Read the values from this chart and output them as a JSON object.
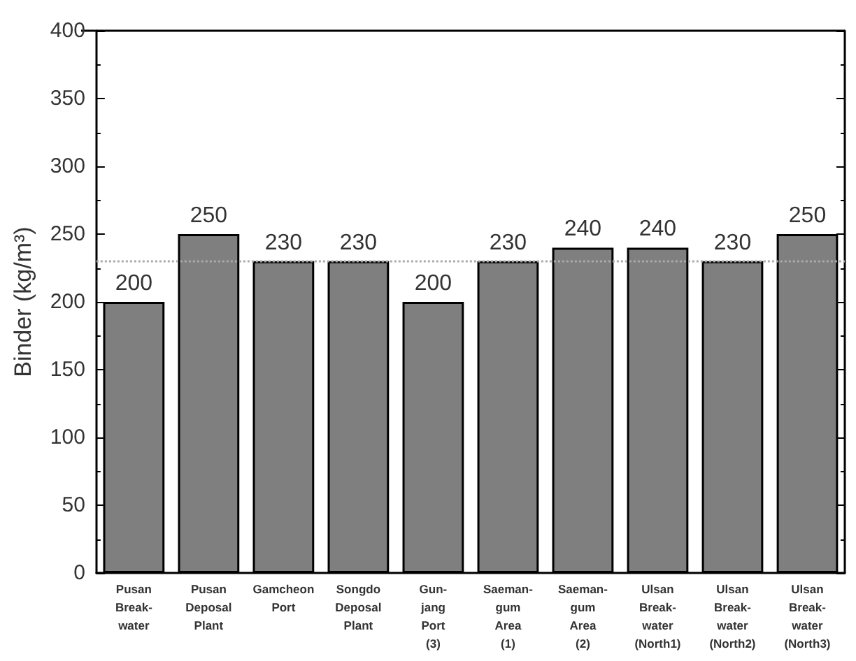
{
  "chart_data": {
    "type": "bar",
    "ylabel": "Binder (kg/m³)",
    "categories": [
      "Pusan\nBreak-\nwater",
      "Pusan\nDeposal\nPlant",
      "Gamcheon\nPort",
      "Songdo\nDeposal\nPlant",
      "Gun-\njang\nPort\n(3)",
      "Saeman-\ngum\nArea\n(1)",
      "Saeman-\ngum\nArea\n(2)",
      "Ulsan\nBreak-\nwater\n(North1)",
      "Ulsan\nBreak-\nwater\n(North2)",
      "Ulsan\nBreak-\nwater\n(North3)"
    ],
    "values": [
      200,
      250,
      230,
      230,
      200,
      230,
      240,
      240,
      230,
      250
    ],
    "color": "#7f7f7f",
    "data_labels": true,
    "ylim": [
      0,
      400
    ],
    "yticks": [
      0,
      50,
      100,
      150,
      200,
      250,
      300,
      350,
      400
    ],
    "ref_lines": [
      {
        "axis": "y",
        "value": 230,
        "color": "#aaaaaa",
        "line_style": "dotted"
      }
    ],
    "grid": false
  }
}
